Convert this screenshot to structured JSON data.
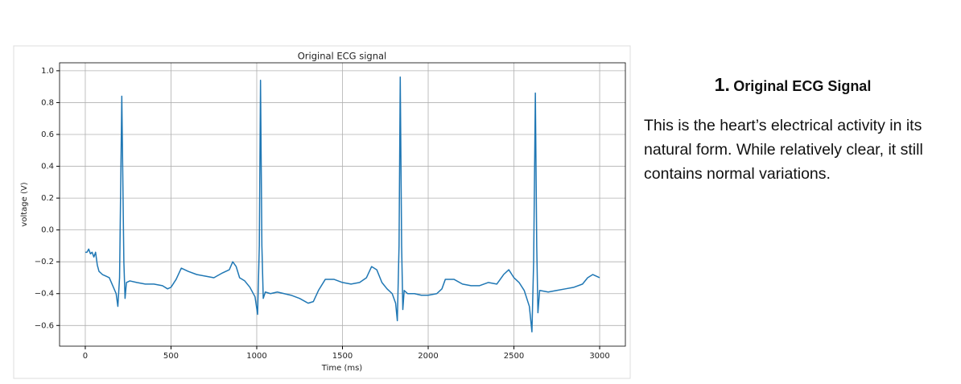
{
  "chart_data": {
    "type": "line",
    "title": "Original ECG signal",
    "x_label": "Time (ms)",
    "y_label": "voltage (V)",
    "x": [
      0,
      10,
      20,
      30,
      40,
      50,
      60,
      70,
      80,
      100,
      120,
      140,
      160,
      180,
      190,
      200,
      213,
      225,
      232,
      240,
      260,
      300,
      350,
      400,
      450,
      480,
      500,
      530,
      560,
      600,
      650,
      700,
      750,
      800,
      840,
      860,
      880,
      900,
      930,
      960,
      990,
      1005,
      1015,
      1022,
      1030,
      1038,
      1050,
      1080,
      1120,
      1160,
      1200,
      1250,
      1300,
      1330,
      1360,
      1400,
      1450,
      1500,
      1550,
      1600,
      1640,
      1670,
      1700,
      1730,
      1760,
      1790,
      1810,
      1820,
      1830,
      1837,
      1845,
      1852,
      1860,
      1880,
      1920,
      1960,
      2000,
      2050,
      2080,
      2100,
      2150,
      2200,
      2250,
      2300,
      2350,
      2400,
      2440,
      2470,
      2500,
      2530,
      2560,
      2590,
      2605,
      2615,
      2625,
      2633,
      2640,
      2650,
      2700,
      2750,
      2800,
      2850,
      2900,
      2930,
      2960,
      3000
    ],
    "values": [
      -0.14,
      -0.14,
      -0.12,
      -0.15,
      -0.14,
      -0.17,
      -0.14,
      -0.22,
      -0.26,
      -0.28,
      -0.29,
      -0.3,
      -0.35,
      -0.4,
      -0.48,
      -0.3,
      0.84,
      -0.2,
      -0.43,
      -0.33,
      -0.32,
      -0.33,
      -0.34,
      -0.34,
      -0.35,
      -0.37,
      -0.36,
      -0.31,
      -0.24,
      -0.26,
      -0.28,
      -0.29,
      -0.3,
      -0.27,
      -0.25,
      -0.2,
      -0.23,
      -0.3,
      -0.32,
      -0.36,
      -0.42,
      -0.53,
      -0.1,
      0.94,
      -0.1,
      -0.43,
      -0.39,
      -0.4,
      -0.39,
      -0.4,
      -0.41,
      -0.43,
      -0.46,
      -0.45,
      -0.38,
      -0.31,
      -0.31,
      -0.33,
      -0.34,
      -0.33,
      -0.3,
      -0.23,
      -0.25,
      -0.33,
      -0.37,
      -0.4,
      -0.46,
      -0.57,
      -0.1,
      0.96,
      -0.1,
      -0.5,
      -0.38,
      -0.4,
      -0.4,
      -0.41,
      -0.41,
      -0.4,
      -0.37,
      -0.31,
      -0.31,
      -0.34,
      -0.35,
      -0.35,
      -0.33,
      -0.34,
      -0.28,
      -0.25,
      -0.3,
      -0.33,
      -0.38,
      -0.48,
      -0.64,
      -0.2,
      0.86,
      -0.1,
      -0.52,
      -0.38,
      -0.39,
      -0.38,
      -0.37,
      -0.36,
      -0.34,
      -0.3,
      -0.28,
      -0.3
    ],
    "color": "#1f77b4",
    "xlim": [
      -150,
      3150
    ],
    "xticks": [
      0,
      500,
      1000,
      1500,
      2000,
      2500,
      3000
    ],
    "ylim": [
      -0.73,
      1.05
    ],
    "yticks": [
      {
        "value": -0.6,
        "label": "−0.6"
      },
      {
        "value": -0.4,
        "label": "−0.4"
      },
      {
        "value": -0.2,
        "label": "−0.2"
      },
      {
        "value": 0,
        "label": "0.0"
      },
      {
        "value": 0.2,
        "label": "0.2"
      },
      {
        "value": 0.4,
        "label": "0.4"
      },
      {
        "value": 0.6,
        "label": "0.6"
      },
      {
        "value": 0.8,
        "label": "0.8"
      },
      {
        "value": 1.0,
        "label": "1.0"
      }
    ],
    "grid": true
  },
  "slide": {
    "heading_number": "1.",
    "heading": "Original ECG Signal",
    "body": "This is the heart’s electrical activity in its natural form. While relatively clear, it still contains normal variations."
  }
}
